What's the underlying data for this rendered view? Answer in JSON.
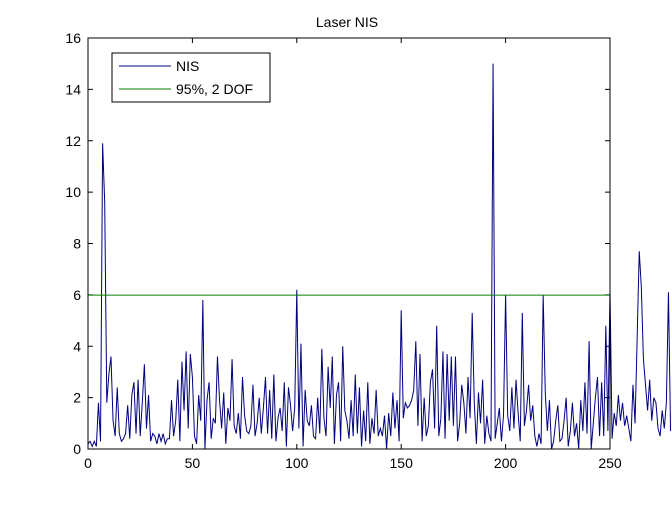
{
  "chart_data": {
    "type": "line",
    "title": "Laser NIS",
    "xlabel": "",
    "ylabel": "",
    "xlim": [
      0,
      250
    ],
    "ylim": [
      0,
      16
    ],
    "grid": false,
    "x_ticks": [
      0,
      50,
      100,
      150,
      200,
      250
    ],
    "y_ticks": [
      0,
      2,
      4,
      6,
      8,
      10,
      12,
      14,
      16
    ],
    "legend": {
      "position": "top-left",
      "entries": [
        "NIS",
        "95%, 2 DOF"
      ]
    },
    "series": [
      {
        "name": "NIS",
        "color": "#00007f",
        "x_start": 0,
        "x_step": 1,
        "values": [
          0.2,
          0.3,
          0.1,
          0.3,
          0.1,
          1.8,
          0.3,
          11.9,
          9.6,
          1.8,
          2.9,
          3.6,
          1.1,
          0.5,
          2.4,
          0.6,
          0.3,
          0.4,
          0.6,
          1.7,
          0.4,
          2.1,
          2.6,
          0.6,
          2.7,
          0.5,
          1.8,
          3.3,
          0.8,
          2.1,
          0.3,
          0.6,
          0.5,
          0.2,
          0.6,
          0.3,
          0.6,
          0.2,
          0.4,
          0.4,
          1.9,
          0.5,
          1.1,
          2.7,
          0.3,
          3.4,
          1.5,
          3.8,
          0.8,
          3.7,
          2.8,
          0.5,
          0.2,
          2.1,
          1.1,
          5.8,
          0.0,
          1.9,
          2.6,
          0.4,
          1.2,
          1.0,
          3.6,
          1.9,
          0.8,
          2.2,
          0.2,
          1.6,
          1.1,
          3.5,
          0.9,
          0.6,
          1.4,
          0.4,
          2.8,
          1.3,
          0.7,
          0.6,
          0.9,
          2.5,
          0.5,
          1.0,
          2.0,
          0.6,
          1.6,
          2.8,
          0.6,
          2.3,
          0.4,
          2.9,
          0.3,
          1.2,
          1.6,
          0.7,
          2.6,
          0.1,
          2.4,
          1.7,
          0.7,
          1.6,
          6.2,
          0.8,
          4.1,
          0.1,
          2.3,
          1.1,
          0.9,
          1.7,
          0.5,
          0.4,
          2.0,
          0.6,
          3.9,
          1.2,
          0.5,
          3.2,
          1.6,
          3.6,
          0.2,
          2.1,
          2.6,
          0.3,
          4.0,
          1.5,
          1.1,
          0.4,
          1.9,
          0.5,
          2.9,
          0.6,
          2.4,
          0.1,
          1.5,
          0.3,
          2.6,
          0.2,
          1.2,
          0.6,
          2.3,
          0.5,
          0.8,
          0.5,
          1.3,
          0.0,
          1.4,
          0.5,
          2.2,
          0.8,
          1.9,
          0.3,
          5.4,
          1.2,
          1.8,
          1.6,
          1.7,
          1.9,
          2.3,
          4.2,
          0.9,
          3.7,
          0.3,
          2.0,
          0.5,
          0.9,
          2.6,
          3.1,
          0.8,
          4.8,
          0.5,
          1.2,
          3.8,
          0.4,
          3.7,
          1.1,
          3.6,
          0.9,
          3.6,
          0.3,
          1.0,
          2.5,
          1.8,
          0.6,
          2.8,
          1.2,
          5.3,
          1.8,
          0.2,
          2.2,
          1.0,
          2.7,
          0.2,
          1.3,
          0.6,
          0.3,
          15.0,
          0.4,
          1.0,
          1.6,
          0.3,
          1.3,
          6.0,
          1.3,
          0.7,
          2.4,
          0.8,
          2.7,
          1.4,
          0.3,
          5.3,
          0.9,
          1.5,
          2.5,
          1.1,
          1.7,
          0.5,
          0.1,
          0.6,
          0.2,
          6.0,
          2.2,
          0.7,
          1.9,
          0.0,
          0.3,
          1.1,
          1.7,
          0.3,
          0.4,
          1.1,
          2.0,
          0.1,
          0.7,
          1.8,
          0.5,
          1.0,
          0.0,
          1.9,
          0.7,
          2.6,
          0.6,
          4.2,
          0.0,
          1.0,
          2.0,
          2.8,
          0.5,
          2.6,
          0.5,
          4.8,
          0.7,
          6.2,
          0.4,
          1.4,
          0.9,
          2.1,
          1.1,
          1.8,
          0.9,
          1.3,
          0.8,
          0.3,
          2.5,
          1.0,
          4.3,
          7.7,
          6.3,
          3.5,
          2.5,
          1.5,
          2.7,
          1.1,
          2.0,
          1.8,
          0.8,
          0.5,
          1.5,
          0.8,
          1.8,
          6.1,
          0.7
        ]
      },
      {
        "name": "95%, 2 DOF",
        "color": "#007f00",
        "x": [
          0,
          250
        ],
        "values": [
          5.99,
          5.99
        ]
      }
    ]
  }
}
